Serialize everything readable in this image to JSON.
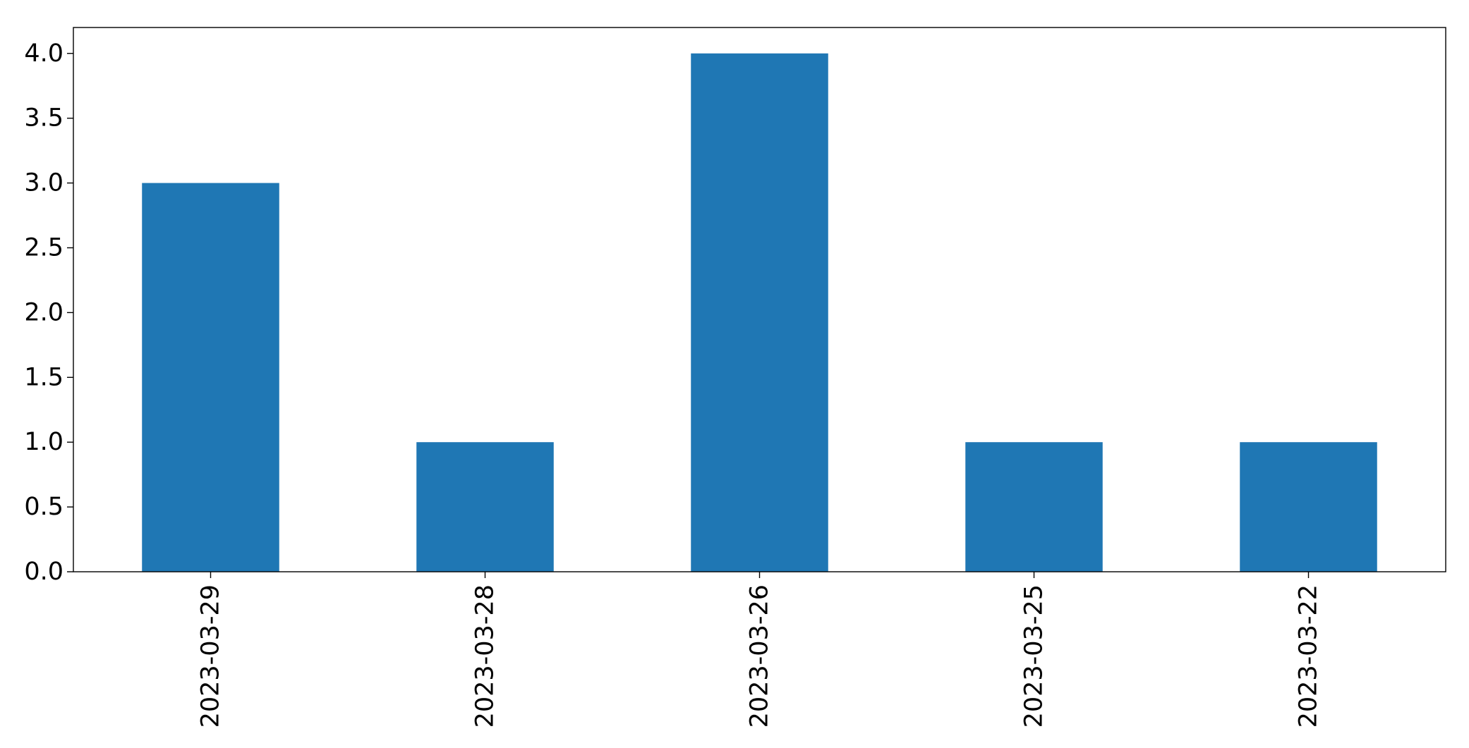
{
  "chart_data": {
    "type": "bar",
    "categories": [
      "2023-03-29",
      "2023-03-28",
      "2023-03-26",
      "2023-03-25",
      "2023-03-22"
    ],
    "values": [
      3,
      1,
      4,
      1,
      1
    ],
    "title": "",
    "xlabel": "",
    "ylabel": "",
    "ylim": [
      0,
      4.2
    ],
    "yticks": [
      "0.0",
      "0.5",
      "1.0",
      "1.5",
      "2.0",
      "2.5",
      "3.0",
      "3.5",
      "4.0"
    ],
    "grid": false,
    "legend": "none",
    "bar_color": "#1f77b4",
    "xtick_rotation": "vertical"
  }
}
